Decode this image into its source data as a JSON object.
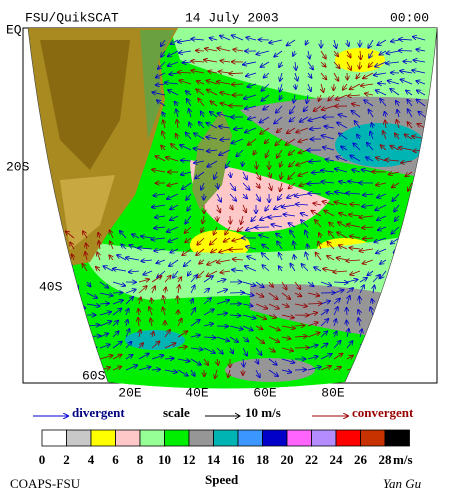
{
  "header": {
    "title": "FSU/QuikSCAT",
    "date": "14 July 2003",
    "time": "00:00"
  },
  "map": {
    "lat_labels": [
      "EQ",
      "20S",
      "40S",
      "60S"
    ],
    "lon_labels": [
      "20E",
      "40E",
      "60E",
      "80E"
    ]
  },
  "legend": {
    "divergent": "divergent",
    "scale": "scale",
    "scale_value": "10 m/s",
    "convergent": "convergent"
  },
  "colorbar": {
    "labels": [
      "0",
      "2",
      "4",
      "6",
      "8",
      "10",
      "12",
      "14",
      "16",
      "18",
      "20",
      "22",
      "24",
      "26",
      "28"
    ],
    "unit": "m/s",
    "colors": [
      "#ffffff",
      "#c8c8c8",
      "#ffff00",
      "#ffc8c8",
      "#96ff96",
      "#00ee00",
      "#969696",
      "#00b4b4",
      "#3c96ff",
      "#0000c8",
      "#ff64ff",
      "#b48cff",
      "#ff0000",
      "#c83200",
      "#000000"
    ],
    "title": "Speed"
  },
  "footer": {
    "left": "COAPS-FSU",
    "right": "Yan Gu"
  }
}
